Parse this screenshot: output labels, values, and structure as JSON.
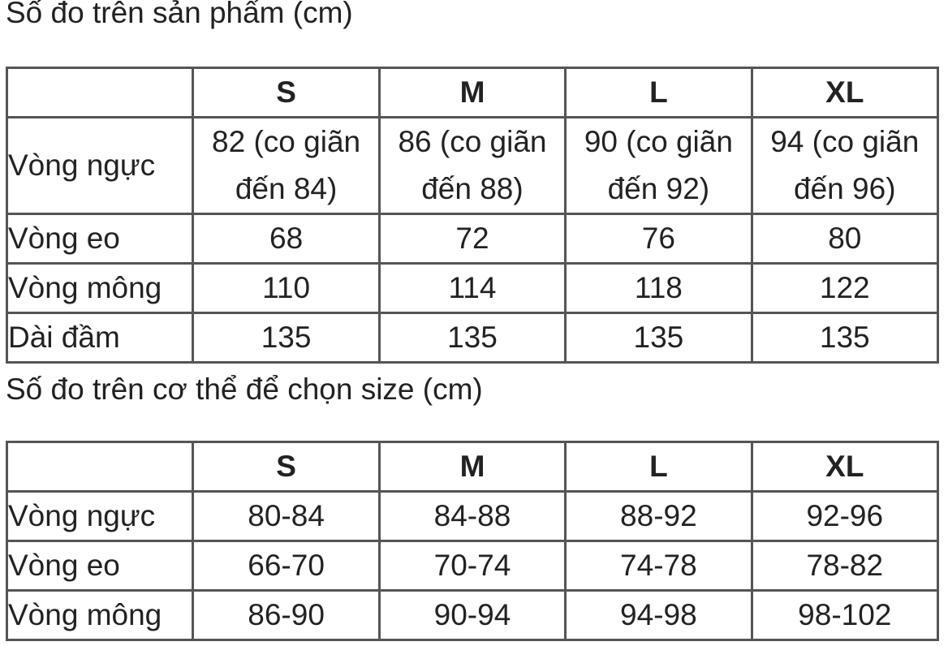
{
  "sections": [
    {
      "title": "Số đo trên sản phẩm (cm)",
      "table": {
        "columns": [
          "S",
          "M",
          "L",
          "XL"
        ],
        "rows": [
          {
            "label": "Vòng ngực",
            "cells": [
              "82 (co giãn đến 84)",
              "86 (co giãn đến 88)",
              "90 (co giãn đến 92)",
              "94 (co giãn đến 96)"
            ]
          },
          {
            "label": "Vòng eo",
            "cells": [
              "68",
              "72",
              "76",
              "80"
            ]
          },
          {
            "label": "Vòng mông",
            "cells": [
              "110",
              "114",
              "118",
              "122"
            ]
          },
          {
            "label": "Dài đầm",
            "cells": [
              "135",
              "135",
              "135",
              "135"
            ]
          }
        ]
      }
    },
    {
      "title": "Số đo trên cơ thể để chọn size (cm)",
      "table": {
        "columns": [
          "S",
          "M",
          "L",
          "XL"
        ],
        "rows": [
          {
            "label": "Vòng ngực",
            "cells": [
              "80-84",
              "84-88",
              "88-92",
              "92-96"
            ]
          },
          {
            "label": "Vòng eo",
            "cells": [
              "66-70",
              "70-74",
              "74-78",
              "78-82"
            ]
          },
          {
            "label": "Vòng mông",
            "cells": [
              "86-90",
              "90-94",
              "94-98",
              "98-102"
            ]
          }
        ]
      }
    }
  ]
}
